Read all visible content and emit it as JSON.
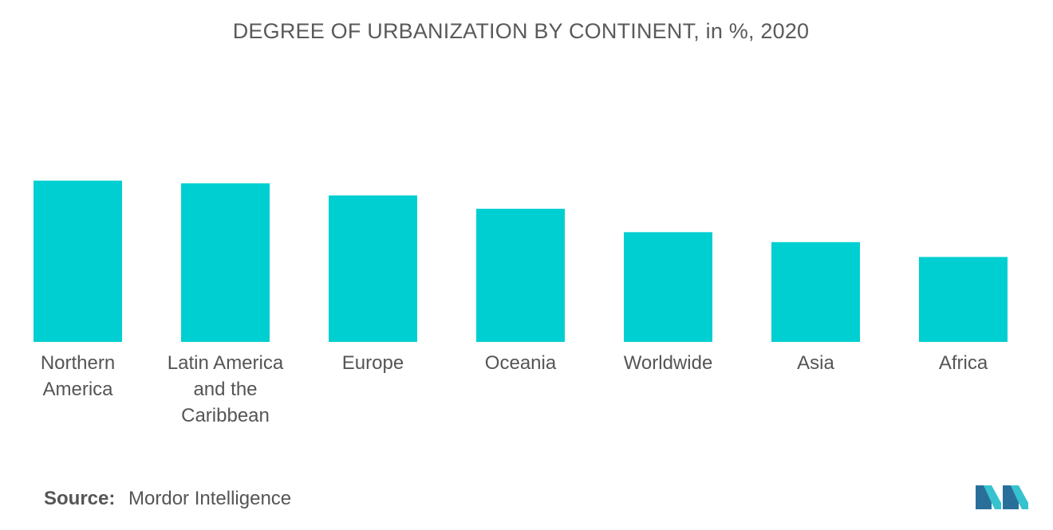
{
  "chart_data": {
    "type": "bar",
    "title": "DEGREE OF URBANIZATION BY CONTINENT, in %, 2020",
    "categories": [
      [
        "Northern",
        "America"
      ],
      [
        "Latin America",
        "and the",
        "Caribbean"
      ],
      [
        "Europe"
      ],
      [
        "Oceania"
      ],
      [
        "Worldwide"
      ],
      [
        "Asia"
      ],
      [
        "Africa"
      ]
    ],
    "values": [
      82.6,
      81.2,
      75.0,
      68.2,
      56.2,
      51.1,
      43.5
    ],
    "ylim": [
      0,
      100
    ],
    "grid": false,
    "legend": "none",
    "bar_color": "#00cfd1"
  },
  "footer": {
    "source_label": "Source:",
    "source_text": "Mordor Intelligence"
  },
  "logo": {
    "icon": "mordor-intelligence-logo",
    "colors": [
      "#2a6f9a",
      "#37c2cf"
    ]
  }
}
